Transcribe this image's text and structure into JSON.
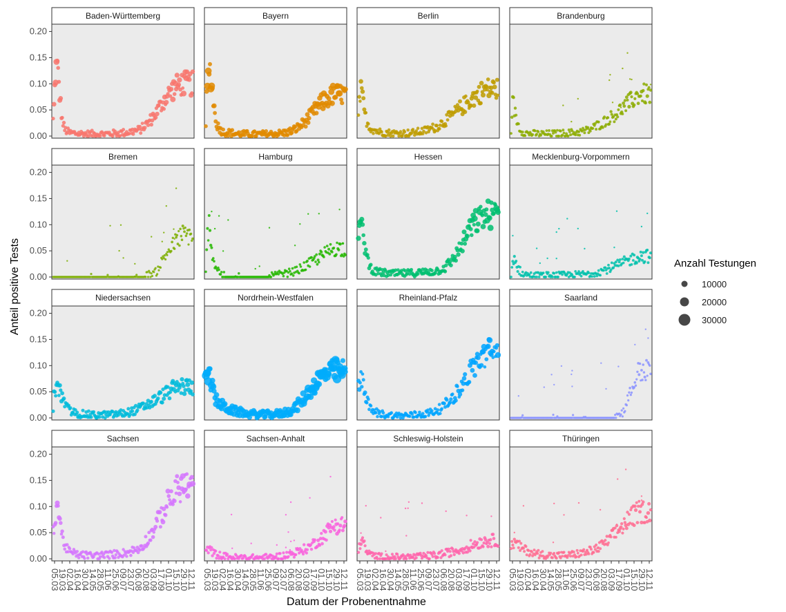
{
  "chart_data": {
    "type": "scatter",
    "facet_layout": "4x4",
    "xlabel": "Datum der Probenentnahme",
    "ylabel": "Anteil positive Tests",
    "ylim": [
      0,
      0.21
    ],
    "yticks": [
      0,
      0.05,
      0.1,
      0.15,
      0.2
    ],
    "ytick_labels": [
      "0.00",
      "0.05",
      "0.10",
      "0.15",
      "0.20"
    ],
    "xticks": [
      "05.03",
      "19.03",
      "02.04",
      "16.04",
      "30.04",
      "14.05",
      "28.05",
      "11.06",
      "25.06",
      "09.07",
      "23.07",
      "06.08",
      "20.08",
      "03.09",
      "17.09",
      "01.10",
      "15.10",
      "29.10",
      "12.11"
    ],
    "grid": false,
    "legend": {
      "title": "Anzahl Testungen",
      "position": "right",
      "entries": [
        {
          "label": "10000",
          "value": 10000
        },
        {
          "label": "20000",
          "value": 20000
        },
        {
          "label": "30000",
          "value": 30000
        }
      ]
    },
    "panels": [
      {
        "name": "Baden-Württemberg",
        "color": "#F8766D",
        "size": 0.45,
        "shape": [
          [
            0,
            0.03
          ],
          [
            0.5,
            0.04
          ],
          [
            2,
            0.09
          ],
          [
            3,
            0.12
          ],
          [
            4,
            0.13
          ],
          [
            5,
            0.13
          ],
          [
            6,
            0.115
          ],
          [
            7,
            0.1
          ],
          [
            9,
            0.06
          ],
          [
            11,
            0.03
          ],
          [
            14,
            0.012
          ],
          [
            20,
            0.006
          ],
          [
            40,
            0.004
          ],
          [
            60,
            0.004
          ],
          [
            75,
            0.005
          ],
          [
            90,
            0.007
          ],
          [
            105,
            0.012
          ],
          [
            115,
            0.025
          ],
          [
            125,
            0.045
          ],
          [
            135,
            0.07
          ],
          [
            145,
            0.09
          ],
          [
            155,
            0.1
          ]
        ]
      },
      {
        "name": "Bayern",
        "color": "#E18A00",
        "size": 0.6,
        "shape": [
          [
            0,
            0.02
          ],
          [
            1,
            0.07
          ],
          [
            3,
            0.11
          ],
          [
            4,
            0.125
          ],
          [
            5,
            0.125
          ],
          [
            6,
            0.115
          ],
          [
            7,
            0.1
          ],
          [
            9,
            0.07
          ],
          [
            11,
            0.04
          ],
          [
            14,
            0.02
          ],
          [
            20,
            0.008
          ],
          [
            40,
            0.004
          ],
          [
            60,
            0.003
          ],
          [
            80,
            0.004
          ],
          [
            95,
            0.006
          ],
          [
            105,
            0.01
          ],
          [
            115,
            0.02
          ],
          [
            125,
            0.035
          ],
          [
            135,
            0.055
          ],
          [
            145,
            0.07
          ],
          [
            155,
            0.08
          ]
        ]
      },
      {
        "name": "Berlin",
        "color": "#BE9C00",
        "size": 0.4,
        "shape": [
          [
            0,
            0.03
          ],
          [
            1,
            0.07
          ],
          [
            3,
            0.085
          ],
          [
            4,
            0.08
          ],
          [
            5,
            0.07
          ],
          [
            6,
            0.06
          ],
          [
            8,
            0.04
          ],
          [
            11,
            0.025
          ],
          [
            15,
            0.015
          ],
          [
            25,
            0.008
          ],
          [
            45,
            0.005
          ],
          [
            65,
            0.006
          ],
          [
            80,
            0.01
          ],
          [
            95,
            0.018
          ],
          [
            110,
            0.035
          ],
          [
            125,
            0.055
          ],
          [
            140,
            0.075
          ],
          [
            155,
            0.09
          ]
        ]
      },
      {
        "name": "Brandenburg",
        "color": "#8CAB00",
        "size": 0.25,
        "shape": [
          [
            0,
            0.0
          ],
          [
            1,
            0.05
          ],
          [
            2,
            0.07
          ],
          [
            4,
            0.05
          ],
          [
            6,
            0.035
          ],
          [
            9,
            0.02
          ],
          [
            12,
            0.01
          ],
          [
            20,
            0.005
          ],
          [
            40,
            0.004
          ],
          [
            60,
            0.005
          ],
          [
            80,
            0.007
          ],
          [
            95,
            0.012
          ],
          [
            110,
            0.025
          ],
          [
            125,
            0.04
          ],
          [
            140,
            0.06
          ],
          [
            155,
            0.08
          ]
        ]
      },
      {
        "name": "Bremen",
        "color": "#7CAE00",
        "size": 0.12,
        "shape": [
          [
            0,
            0.0
          ],
          [
            10,
            0.0
          ],
          [
            40,
            0.0
          ],
          [
            80,
            0.0
          ],
          [
            105,
            0.0
          ],
          [
            115,
            0.005
          ],
          [
            125,
            0.01
          ],
          [
            135,
            0.04
          ],
          [
            145,
            0.06
          ],
          [
            155,
            0.08
          ]
        ]
      },
      {
        "name": "Hamburg",
        "color": "#24B700",
        "size": 0.18,
        "shape": [
          [
            0,
            0.01
          ],
          [
            2,
            0.08
          ],
          [
            4,
            0.1
          ],
          [
            6,
            0.08
          ],
          [
            8,
            0.04
          ],
          [
            12,
            0.02
          ],
          [
            20,
            0.003
          ],
          [
            40,
            0.002
          ],
          [
            60,
            0.002
          ],
          [
            80,
            0.003
          ],
          [
            95,
            0.006
          ],
          [
            110,
            0.012
          ],
          [
            125,
            0.025
          ],
          [
            140,
            0.04
          ],
          [
            155,
            0.055
          ]
        ]
      },
      {
        "name": "Hessen",
        "color": "#00BE70",
        "size": 0.45,
        "shape": [
          [
            0,
            0.08
          ],
          [
            2,
            0.1
          ],
          [
            4,
            0.09
          ],
          [
            6,
            0.08
          ],
          [
            8,
            0.06
          ],
          [
            10,
            0.04
          ],
          [
            14,
            0.02
          ],
          [
            20,
            0.01
          ],
          [
            40,
            0.006
          ],
          [
            60,
            0.007
          ],
          [
            80,
            0.009
          ],
          [
            95,
            0.012
          ],
          [
            105,
            0.018
          ],
          [
            115,
            0.035
          ],
          [
            125,
            0.06
          ],
          [
            135,
            0.09
          ],
          [
            145,
            0.11
          ],
          [
            155,
            0.12
          ]
        ]
      },
      {
        "name": "Mecklenburg-Vorpommern",
        "color": "#00C1AB",
        "size": 0.22,
        "shape": [
          [
            0,
            0.0
          ],
          [
            2,
            0.03
          ],
          [
            4,
            0.04
          ],
          [
            6,
            0.025
          ],
          [
            9,
            0.015
          ],
          [
            14,
            0.006
          ],
          [
            25,
            0.003
          ],
          [
            50,
            0.003
          ],
          [
            75,
            0.004
          ],
          [
            95,
            0.006
          ],
          [
            110,
            0.012
          ],
          [
            125,
            0.02
          ],
          [
            140,
            0.03
          ],
          [
            155,
            0.04
          ]
        ]
      },
      {
        "name": "Niedersachsen",
        "color": "#00BBDA",
        "size": 0.45,
        "shape": [
          [
            0,
            0.01
          ],
          [
            1,
            0.04
          ],
          [
            3,
            0.055
          ],
          [
            5,
            0.06
          ],
          [
            7,
            0.055
          ],
          [
            9,
            0.045
          ],
          [
            12,
            0.035
          ],
          [
            16,
            0.02
          ],
          [
            22,
            0.012
          ],
          [
            30,
            0.008
          ],
          [
            50,
            0.005
          ],
          [
            70,
            0.006
          ],
          [
            90,
            0.01
          ],
          [
            105,
            0.018
          ],
          [
            120,
            0.03
          ],
          [
            135,
            0.045
          ],
          [
            145,
            0.055
          ],
          [
            155,
            0.06
          ]
        ]
      },
      {
        "name": "Nordrhein-Westfalen",
        "color": "#00ACFC",
        "size": 0.85,
        "shape": [
          [
            0,
            0.09
          ],
          [
            2,
            0.095
          ],
          [
            4,
            0.085
          ],
          [
            6,
            0.07
          ],
          [
            9,
            0.05
          ],
          [
            12,
            0.035
          ],
          [
            18,
            0.025
          ],
          [
            30,
            0.015
          ],
          [
            50,
            0.008
          ],
          [
            70,
            0.006
          ],
          [
            90,
            0.008
          ],
          [
            105,
            0.015
          ],
          [
            115,
            0.03
          ],
          [
            125,
            0.05
          ],
          [
            135,
            0.07
          ],
          [
            145,
            0.085
          ],
          [
            155,
            0.09
          ]
        ]
      },
      {
        "name": "Rheinland-Pfalz",
        "color": "#00A5FF",
        "size": 0.4,
        "shape": [
          [
            0,
            0.06
          ],
          [
            2,
            0.07
          ],
          [
            4,
            0.075
          ],
          [
            6,
            0.07
          ],
          [
            8,
            0.05
          ],
          [
            11,
            0.03
          ],
          [
            15,
            0.015
          ],
          [
            25,
            0.008
          ],
          [
            45,
            0.004
          ],
          [
            65,
            0.005
          ],
          [
            85,
            0.009
          ],
          [
            100,
            0.018
          ],
          [
            112,
            0.035
          ],
          [
            125,
            0.06
          ],
          [
            140,
            0.1
          ],
          [
            155,
            0.125
          ]
        ]
      },
      {
        "name": "Saarland",
        "color": "#8B93FF",
        "size": 0.12,
        "shape": [
          [
            0,
            0.0
          ],
          [
            30,
            0.0
          ],
          [
            60,
            0.0
          ],
          [
            90,
            0.0
          ],
          [
            120,
            0.0
          ],
          [
            135,
            0.01
          ],
          [
            145,
            0.05
          ],
          [
            155,
            0.09
          ]
        ]
      },
      {
        "name": "Sachsen",
        "color": "#D575FE",
        "size": 0.35,
        "shape": [
          [
            0,
            0.05
          ],
          [
            2,
            0.08
          ],
          [
            4,
            0.1
          ],
          [
            6,
            0.1
          ],
          [
            8,
            0.08
          ],
          [
            10,
            0.05
          ],
          [
            13,
            0.03
          ],
          [
            18,
            0.015
          ],
          [
            30,
            0.008
          ],
          [
            50,
            0.006
          ],
          [
            70,
            0.008
          ],
          [
            90,
            0.012
          ],
          [
            105,
            0.02
          ],
          [
            118,
            0.045
          ],
          [
            130,
            0.08
          ],
          [
            142,
            0.115
          ],
          [
            155,
            0.14
          ]
        ]
      },
      {
        "name": "Sachsen-Anhalt",
        "color": "#F962DD",
        "size": 0.3,
        "shape": [
          [
            0,
            0.01
          ],
          [
            2,
            0.02
          ],
          [
            4,
            0.02
          ],
          [
            6,
            0.015
          ],
          [
            10,
            0.01
          ],
          [
            20,
            0.005
          ],
          [
            40,
            0.002
          ],
          [
            60,
            0.002
          ],
          [
            80,
            0.003
          ],
          [
            95,
            0.006
          ],
          [
            110,
            0.012
          ],
          [
            125,
            0.022
          ],
          [
            140,
            0.04
          ],
          [
            155,
            0.065
          ]
        ]
      },
      {
        "name": "Schleswig-Holstein",
        "color": "#FF65AC",
        "size": 0.3,
        "shape": [
          [
            0,
            0.01
          ],
          [
            2,
            0.03
          ],
          [
            4,
            0.045
          ],
          [
            6,
            0.03
          ],
          [
            9,
            0.015
          ],
          [
            14,
            0.008
          ],
          [
            25,
            0.004
          ],
          [
            50,
            0.003
          ],
          [
            75,
            0.004
          ],
          [
            95,
            0.007
          ],
          [
            110,
            0.012
          ],
          [
            125,
            0.018
          ],
          [
            140,
            0.028
          ],
          [
            155,
            0.035
          ]
        ]
      },
      {
        "name": "Thüringen",
        "color": "#FF6C91",
        "size": 0.25,
        "shape": [
          [
            0,
            0.02
          ],
          [
            2,
            0.03
          ],
          [
            4,
            0.03
          ],
          [
            6,
            0.03
          ],
          [
            9,
            0.025
          ],
          [
            13,
            0.02
          ],
          [
            20,
            0.015
          ],
          [
            30,
            0.01
          ],
          [
            50,
            0.006
          ],
          [
            70,
            0.007
          ],
          [
            90,
            0.012
          ],
          [
            105,
            0.02
          ],
          [
            118,
            0.035
          ],
          [
            130,
            0.055
          ],
          [
            142,
            0.075
          ],
          [
            155,
            0.09
          ]
        ]
      }
    ]
  }
}
